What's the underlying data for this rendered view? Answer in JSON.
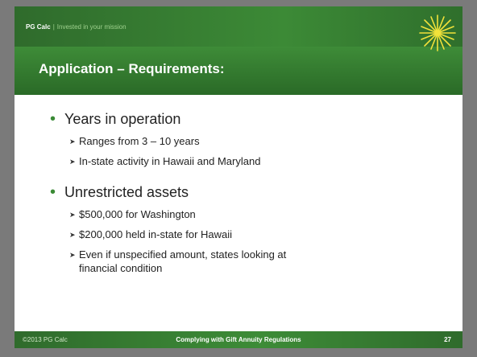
{
  "header": {
    "brand": "PG Calc",
    "separator": "|",
    "tagline": "Invested in your mission"
  },
  "title": "Application – Requirements:",
  "bullets": [
    {
      "text": "Years in operation",
      "items": [
        "Ranges from 3 – 10 years",
        "In-state activity in Hawaii and Maryland"
      ]
    },
    {
      "text": "Unrestricted assets",
      "items": [
        "$500,000 for Washington",
        "$200,000 held in-state for Hawaii",
        "Even if unspecified amount, states looking at financial condition"
      ]
    }
  ],
  "footer": {
    "copyright": "©2013 PG Calc",
    "title": "Complying with Gift Annuity Regulations",
    "page": "27"
  }
}
